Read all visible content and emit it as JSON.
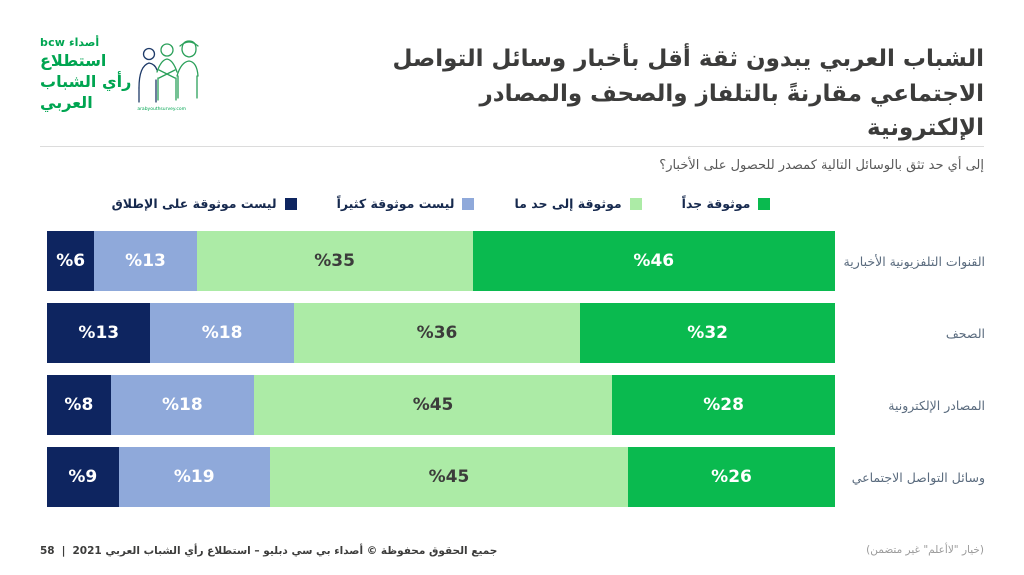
{
  "header": {
    "logo": {
      "brand_ar": "أصداء",
      "brand_latin": "bcw",
      "lines": [
        "استطلاع",
        "رأي الشباب",
        "العربي"
      ],
      "url_text": "arabyouthsurvey.com",
      "brand_green": "#00A551",
      "art_navy": "#1E3A68"
    },
    "title": "الشباب العربي يبدون ثقة أقل بأخبار وسائل التواصل الاجتماعي مقارنةً بالتلفاز والصحف والمصادر الإلكترونية"
  },
  "question": "إلى أي حد تثق بالوسائل التالية كمصدر للحصول على الأخبار؟",
  "chart_data": {
    "type": "bar",
    "orientation": "horizontal-stacked",
    "direction": "rtl",
    "xlim": [
      0,
      100
    ],
    "value_label_format": "%{value}",
    "legend_position": "top",
    "categories": [
      "القنوات التلفزيونية الأخبارية",
      "الصحف",
      "المصادر الإلكترونية",
      "وسائل التواصل الاجتماعي"
    ],
    "series": [
      {
        "name": "موثوقة جداً",
        "color": "#0ABA4F",
        "label_color": "#FFFFFF",
        "values": [
          46,
          32,
          28,
          26
        ]
      },
      {
        "name": "موثوقة إلى حد ما",
        "color": "#ACEBA6",
        "label_color": "#3C3C3B",
        "values": [
          35,
          36,
          45,
          45
        ]
      },
      {
        "name": "ليست موثوقة كثيراً",
        "color": "#8FA9DA",
        "label_color": "#FFFFFF",
        "values": [
          13,
          18,
          18,
          19
        ]
      },
      {
        "name": "ليست موثوقة على الإطلاق",
        "color": "#0E2560",
        "label_color": "#FFFFFF",
        "values": [
          6,
          13,
          8,
          9
        ]
      }
    ]
  },
  "footer": {
    "page_number": "58",
    "separator": "|",
    "copyright": "جميع الحقوق محفوظة © أصداء بي سي دبليو – استطلاع رأي الشباب العربي 2021",
    "note": "(خيار \"لاأعلم\" غير متضمن)"
  }
}
